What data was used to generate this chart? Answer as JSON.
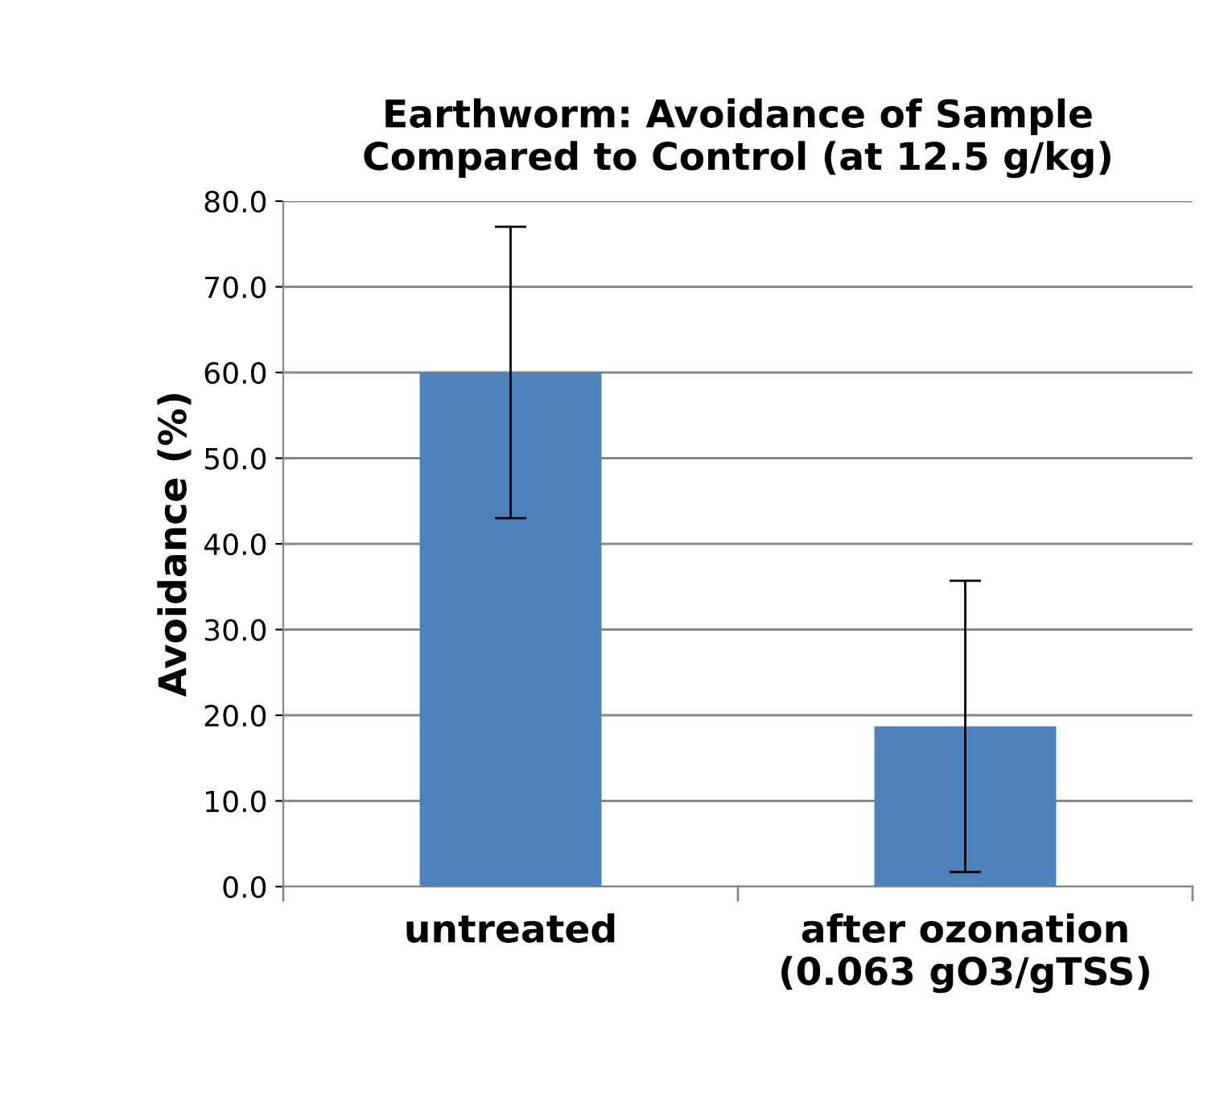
{
  "chart_data": {
    "type": "bar",
    "title": "Earthworm: Avoidance of Sample\nCompared to Control (at 12.5 g/kg)",
    "ylabel": "Avoidance (%)",
    "categories": [
      "untreated",
      "after ozonation\n(0.063 gO3/gTSS)"
    ],
    "values": [
      60.0,
      18.7
    ],
    "errors": [
      17,
      17
    ],
    "color": "#4f81bd",
    "ylim": [
      0,
      80
    ],
    "yticks": [
      {
        "value": 0,
        "label": "0.0"
      },
      {
        "value": 10,
        "label": "10.0"
      },
      {
        "value": 20,
        "label": "20.0"
      },
      {
        "value": 30,
        "label": "30.0"
      },
      {
        "value": 40,
        "label": "40.0"
      },
      {
        "value": 50,
        "label": "50.0"
      },
      {
        "value": 60,
        "label": "60.0"
      },
      {
        "value": 70,
        "label": "70.0"
      },
      {
        "value": 80,
        "label": "80.0"
      }
    ],
    "grid": "y"
  }
}
